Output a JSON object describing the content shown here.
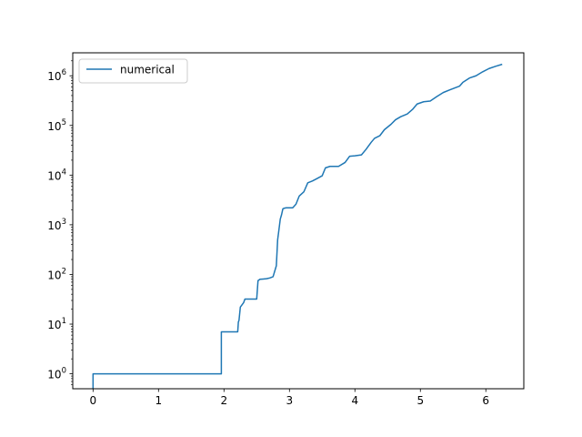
{
  "chart_data": {
    "type": "line",
    "title": "",
    "xlabel": "",
    "ylabel": "",
    "xlim": [
      -0.31,
      6.58
    ],
    "ylim": [
      0.5,
      2900000
    ],
    "yscale": "log",
    "grid": false,
    "legend": {
      "placement": "top-left"
    },
    "x_ticks": [
      {
        "value": 0,
        "label": "0"
      },
      {
        "value": 1,
        "label": "1"
      },
      {
        "value": 2,
        "label": "2"
      },
      {
        "value": 3,
        "label": "3"
      },
      {
        "value": 4,
        "label": "4"
      },
      {
        "value": 5,
        "label": "5"
      },
      {
        "value": 6,
        "label": "6"
      }
    ],
    "y_ticks": [
      {
        "value": 1,
        "base": "10",
        "exp": "0"
      },
      {
        "value": 10,
        "base": "10",
        "exp": "1"
      },
      {
        "value": 100,
        "base": "10",
        "exp": "2"
      },
      {
        "value": 1000,
        "base": "10",
        "exp": "3"
      },
      {
        "value": 10000,
        "base": "10",
        "exp": "4"
      },
      {
        "value": 100000,
        "base": "10",
        "exp": "5"
      },
      {
        "value": 1000000,
        "base": "10",
        "exp": "6"
      }
    ],
    "series": [
      {
        "name": "numerical",
        "color": "#1f77b4",
        "x": [
          0,
          0,
          0.01,
          1.96,
          1.96,
          2.21,
          2.22,
          2.23,
          2.25,
          2.3,
          2.32,
          2.5,
          2.52,
          2.55,
          2.6,
          2.65,
          2.7,
          2.75,
          2.8,
          2.82,
          2.84,
          2.86,
          2.88,
          2.9,
          2.92,
          2.95,
          3.05,
          3.1,
          3.15,
          3.22,
          3.28,
          3.35,
          3.42,
          3.5,
          3.55,
          3.62,
          3.75,
          3.85,
          3.92,
          4.0,
          4.1,
          4.17,
          4.25,
          4.3,
          4.38,
          4.45,
          4.55,
          4.62,
          4.7,
          4.8,
          4.88,
          4.95,
          5.05,
          5.15,
          5.25,
          5.35,
          5.45,
          5.6,
          5.65,
          5.75,
          5.85,
          5.95,
          6.05,
          6.15,
          6.25
        ],
        "y": [
          0.45,
          1,
          1,
          1,
          7,
          7,
          11,
          12,
          22,
          27,
          32,
          32,
          75,
          80,
          81,
          82,
          85,
          90,
          150,
          500,
          800,
          1300,
          1600,
          2100,
          2150,
          2200,
          2200,
          2600,
          3800,
          4600,
          7000,
          7600,
          8500,
          9700,
          14000,
          15000,
          15000,
          18000,
          24000,
          24500,
          25500,
          33000,
          46000,
          55000,
          62000,
          82000,
          105000,
          130000,
          150000,
          170000,
          210000,
          270000,
          300000,
          310000,
          380000,
          460000,
          520000,
          620000,
          740000,
          900000,
          1000000,
          1200000,
          1400000,
          1550000,
          1700000
        ]
      }
    ]
  }
}
